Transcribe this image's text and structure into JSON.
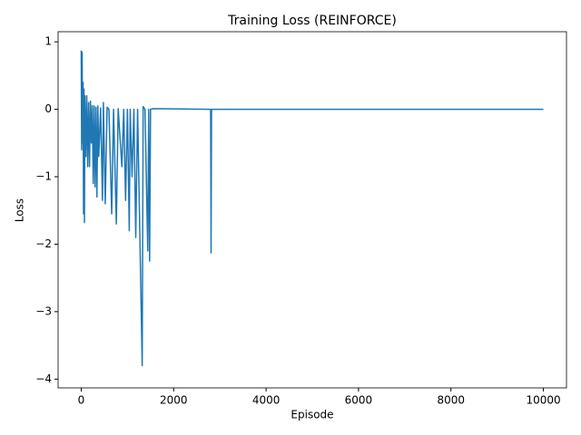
{
  "chart_data": {
    "type": "line",
    "title": "Training Loss (REINFORCE)",
    "xlabel": "Episode",
    "ylabel": "Loss",
    "x": [
      0,
      10,
      20,
      30,
      40,
      50,
      60,
      70,
      80,
      100,
      120,
      140,
      160,
      180,
      200,
      220,
      240,
      260,
      280,
      300,
      320,
      340,
      360,
      380,
      420,
      460,
      480,
      520,
      560,
      600,
      660,
      700,
      760,
      800,
      880,
      920,
      960,
      1000,
      1040,
      1060,
      1100,
      1140,
      1180,
      1220,
      1320,
      1340,
      1380,
      1440,
      1460,
      1480,
      1500,
      1560,
      2800,
      2810,
      2820,
      10000
    ],
    "series": [
      {
        "name": "Loss",
        "color": "#1f77b4",
        "values": [
          0.87,
          -0.6,
          0.85,
          -0.5,
          0.4,
          -1.55,
          0.3,
          -1.68,
          0.2,
          -0.7,
          0.2,
          -0.85,
          0.1,
          -0.85,
          0.12,
          -0.5,
          0.05,
          -1.1,
          0.05,
          -1.15,
          0.03,
          -1.3,
          0.05,
          -0.7,
          0.02,
          -1.35,
          0.1,
          -1.4,
          0.03,
          0,
          -1.55,
          0,
          -1.7,
          0.01,
          -0.85,
          0,
          -1.35,
          0,
          -1.8,
          0,
          -1.0,
          0,
          -1.9,
          0,
          -3.8,
          0.04,
          0,
          -2.1,
          0,
          -2.25,
          0,
          0.01,
          0,
          -2.13,
          0,
          0
        ]
      }
    ],
    "xlim": [
      -500,
      10500
    ],
    "ylim": [
      -4.13,
      1.15
    ],
    "xticks": [
      0,
      2000,
      4000,
      6000,
      8000,
      10000
    ],
    "yticks": [
      {
        "value": -4,
        "label": "−4"
      },
      {
        "value": -3,
        "label": "−3"
      },
      {
        "value": -2,
        "label": "−2"
      },
      {
        "value": -1,
        "label": "−1"
      },
      0,
      1
    ]
  }
}
